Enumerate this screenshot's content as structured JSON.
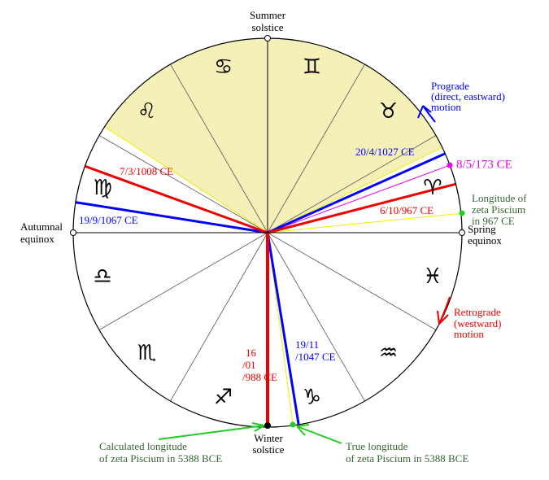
{
  "zodiac": [
    "♈",
    "♉",
    "♊",
    "♋",
    "♌",
    "♍",
    "♎",
    "♏",
    "♐",
    "♑",
    "♒",
    "♓"
  ],
  "summer_solstice": [
    "Summer",
    "solstice"
  ],
  "autumnal_equinox": [
    "Autumnal",
    "equinox"
  ],
  "spring_equinox": [
    "Spring",
    "equinox"
  ],
  "winter_solstice": [
    "Winter",
    "solstice"
  ],
  "prograde": [
    "Prograde",
    "(direct, eastward)",
    "motion"
  ],
  "retrograde": [
    "Retrograde",
    "(westward)",
    "motion"
  ],
  "longitude_967": [
    "Longitude of",
    "zeta  Piscium",
    "in 967 CE"
  ],
  "calculated_5388": [
    "Calculated longitude",
    "of zeta Piscium in 5388 BCE"
  ],
  "true_5388": [
    "True longitude",
    "of zeta Piscium in 5388 BCE"
  ],
  "dates": {
    "d173": "8/5/173 CE",
    "d1027": "20/4/1027 CE",
    "d1008": "7/3/1008 CE",
    "d1067": "19/9/1067 CE",
    "d967": "6/10/967 CE",
    "d988": [
      "16",
      "/01",
      "/988 CE"
    ],
    "d1047": [
      "19/11",
      "/1047 CE"
    ]
  }
}
